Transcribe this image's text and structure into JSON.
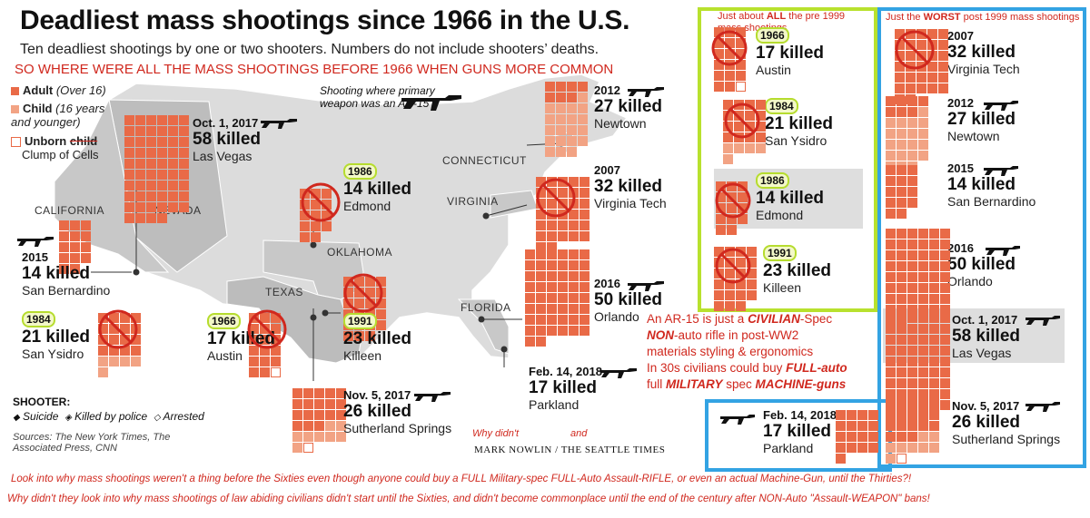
{
  "title": "Deadliest mass shootings since 1966 in the U.S.",
  "subtitle": "Ten deadliest shootings by one or two shooters. Numbers do not include shooters’ deaths.",
  "red_question": "SO WHERE WERE ALL THE MASS SHOOTINGS BEFORE 1966 WHEN GUNS MORE COMMON",
  "legend": {
    "adult": "Adult",
    "adult_note": "(Over 16)",
    "child": "Child",
    "child_note": "(16 years and younger)",
    "unborn": "Unborn",
    "unborn_struck": "child",
    "unborn_alt": "Clump of Cells"
  },
  "ar15_caption": "Shooting where primary weapon was an AR-15",
  "states": [
    "CALIFORNIA",
    "NEVADA",
    "OKLAHOMA",
    "TEXAS",
    "CONNECTICUT",
    "VIRGINIA",
    "FLORIDA"
  ],
  "map_cards": {
    "lasvegas": {
      "year": "Oct. 1, 2017",
      "killed": "58 killed",
      "city": "Las Vegas"
    },
    "edmond": {
      "year": "1986",
      "killed": "14 killed",
      "city": "Edmond"
    },
    "sanbern": {
      "year": "2015",
      "killed": "14 killed",
      "city": "San Bernardino"
    },
    "sanysidro": {
      "year": "1984",
      "killed": "21 killed",
      "city": "San Ysidro"
    },
    "austin": {
      "year": "1966",
      "killed": "17 killed",
      "city": "Austin"
    },
    "killeen": {
      "year": "1991",
      "killed": "23 killed",
      "city": "Killeen"
    },
    "sutherland": {
      "year": "Nov. 5, 2017",
      "killed": "26 killed",
      "city": "Sutherland Springs"
    },
    "newtown": {
      "year": "2012",
      "killed": "27 killed",
      "city": "Newtown"
    },
    "vt": {
      "year": "2007",
      "killed": "32 killed",
      "city": "Virginia Tech"
    },
    "orlando": {
      "year": "2016",
      "killed": "50 killed",
      "city": "Orlando"
    },
    "parkland": {
      "year": "Feb. 14, 2018",
      "killed": "17 killed",
      "city": "Parkland"
    }
  },
  "shooter_legend": {
    "title": "SHOOTER:",
    "suicide": "Suicide",
    "police": "Killed by police",
    "arrested": "Arrested"
  },
  "sources": "Sources: The New York Times, The Associated Press, CNN",
  "credit": "MARK NOWLIN / THE SEATTLE TIMES",
  "why_didnt": "Why didn't",
  "and_text": "and",
  "green_panel": {
    "header_pre": "Just about ",
    "header_bold": "ALL",
    "header_post": " the pre 1999 mass shootings",
    "items": [
      {
        "year": "1966",
        "killed": "17 killed",
        "city": "Austin"
      },
      {
        "year": "1984",
        "killed": "21 killed",
        "city": "San Ysidro"
      },
      {
        "year": "1986",
        "killed": "14 killed",
        "city": "Edmond"
      },
      {
        "year": "1991",
        "killed": "23 killed",
        "city": "Killeen"
      }
    ]
  },
  "blue_panel": {
    "header_pre": "Just the ",
    "header_bold": "WORST",
    "header_post": " post 1999 mass shootings",
    "items": [
      {
        "year": "2007",
        "killed": "32 killed",
        "city": "Virginia Tech"
      },
      {
        "year": "2012",
        "killed": "27 killed",
        "city": "Newtown"
      },
      {
        "year": "2015",
        "killed": "14 killed",
        "city": "San Bernardino"
      },
      {
        "year": "2016",
        "killed": "50 killed",
        "city": "Orlando"
      },
      {
        "year": "Oct. 1, 2017",
        "killed": "58 killed",
        "city": "Las Vegas"
      },
      {
        "year": "Nov. 5, 2017",
        "killed": "26 killed",
        "city": "Sutherland Springs"
      }
    ],
    "parkland": {
      "year": "Feb. 14, 2018",
      "killed": "17 killed",
      "city": "Parkland"
    }
  },
  "ar_note": {
    "l1a": "An AR-15 is just a ",
    "l1b": "CIVILIAN",
    "l1c": "-Spec",
    "l2a": "NON",
    "l2b": "-auto rifle in post-WW2",
    "l3": "materials styling & ergonomics",
    "l4a": "In 30s civilians could buy ",
    "l4b": "FULL-auto",
    "l5a": "full ",
    "l5b": "MILITARY",
    "l5c": " spec ",
    "l5d": "MACHINE-guns"
  },
  "bottom_line1": "Look into why mass shootings weren't a thing before the Sixties even though anyone could buy a FULL Military-spec FULL-Auto Assault-RIFLE, or even an actual Machine-Gun, until the Thirties?!",
  "bottom_line2": "Why didn't they look into why mass shootings of law abiding civilians didn't start until the Sixties, and didn't become commonplace until the end of the century after NON-Auto \"Assault-WEAPON\" bans!",
  "colors": {
    "adult": "#e96a47",
    "child": "#f2a384",
    "red": "#d0281e",
    "green": "#b8e12e",
    "blue": "#33a3e3",
    "map": "#d9d9d9"
  },
  "icons": [
    "rifle-icon",
    "no-symbol-icon",
    "suicide-diamond-icon",
    "police-diamond-icon",
    "arrested-diamond-icon"
  ]
}
